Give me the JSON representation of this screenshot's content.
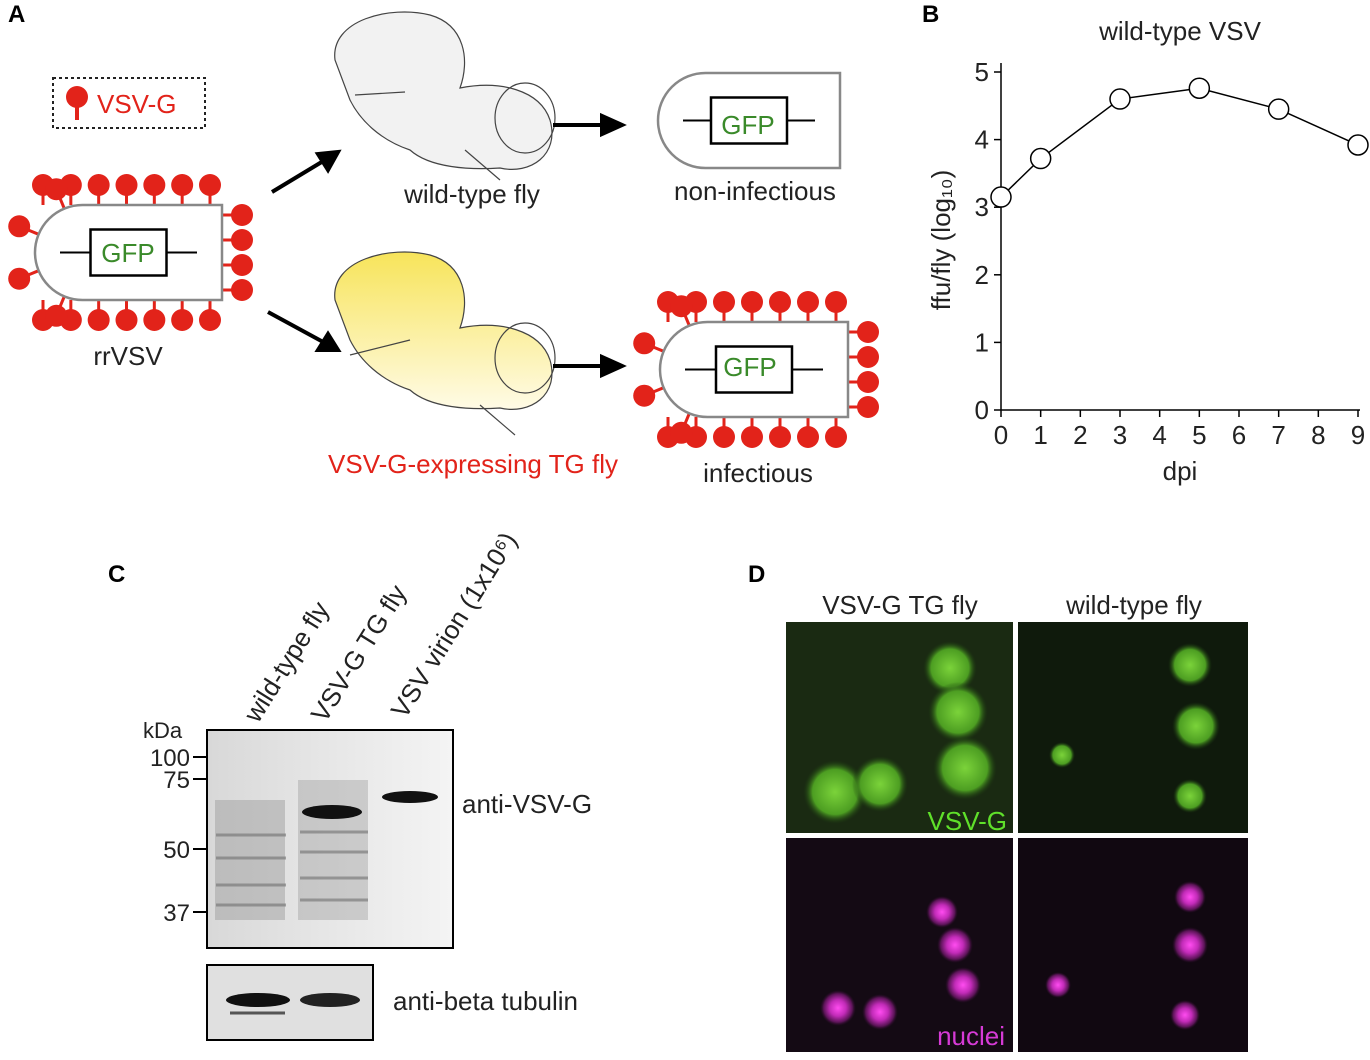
{
  "panel_a": {
    "label": "A",
    "legend": "VSV-G",
    "gfp": [
      "GFP",
      "GFP",
      "GFP"
    ],
    "virus_label": "rrVSV",
    "wild_type": "wild-type fly",
    "non_infectious": "non-infectious",
    "tg_fly": "VSV-G-expressing TG fly",
    "infectious": "infectious"
  },
  "chart_data": {
    "type": "line",
    "panel_label": "B",
    "title": "wild-type VSV",
    "x_label": "dpi",
    "y_label": "ffu/fly (log₁₀)",
    "x": [
      0,
      1,
      3,
      5,
      7,
      9
    ],
    "values": [
      3.15,
      3.72,
      4.6,
      4.76,
      4.45,
      3.92
    ],
    "color": "#000000",
    "xlim": [
      0,
      9
    ],
    "xticks": [
      0,
      1,
      2,
      3,
      4,
      5,
      6,
      7,
      8,
      9
    ],
    "ylim": [
      0,
      5
    ],
    "yticks": [
      0,
      1,
      2,
      3,
      4,
      5
    ],
    "grid": false
  },
  "panel_c": {
    "label": "C",
    "lanes": [
      "wild-type fly",
      "VSV-G TG fly",
      "VSV virion (1x10⁶)"
    ],
    "kda": "kDa",
    "markers": [
      100,
      75,
      50,
      37
    ],
    "blot_labels": [
      "anti-VSV-G",
      "anti-beta tubulin"
    ]
  },
  "panel_d": {
    "label": "D",
    "columns": [
      "VSV-G TG fly",
      "wild-type fly"
    ],
    "channels": [
      "VSV-G",
      "nuclei"
    ]
  }
}
